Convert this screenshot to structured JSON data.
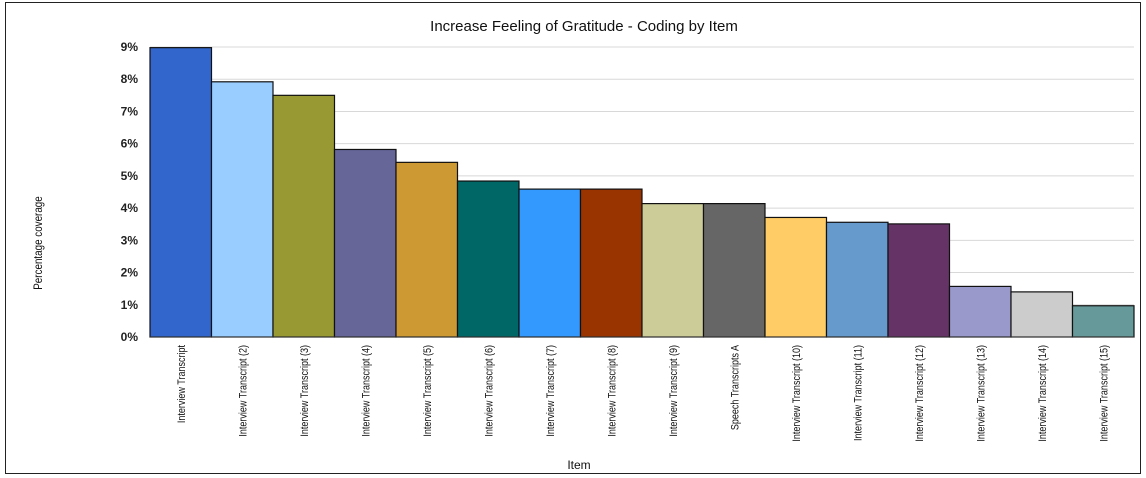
{
  "chart_data": {
    "type": "bar",
    "title": "Increase Feeling of Gratitude - Coding by Item",
    "xlabel": "Item",
    "ylabel": "Percentage coverage",
    "ylim": [
      0,
      9
    ],
    "yticks": [
      "0%",
      "1%",
      "2%",
      "3%",
      "4%",
      "5%",
      "6%",
      "7%",
      "8%",
      "9%"
    ],
    "grid": true,
    "categories": [
      "Interview Transcript",
      "Interview Transcript (2)",
      "Interview Transcript (3)",
      "Interview Transcript (4)",
      "Interview Transcript (5)",
      "Interview Transcript (6)",
      "Interview Transcript (7)",
      "Interview Transcript (8)",
      "Interview Transcript (9)",
      "Speech Transcripts A",
      "Interview Transcript (10)",
      "Interview Transcript (11)",
      "Interview Transcript (12)",
      "Interview Transcript (13)",
      "Interview Transcript (14)",
      "Interview Transcript (15)"
    ],
    "values": [
      8.98,
      7.92,
      7.5,
      5.82,
      5.42,
      4.84,
      4.59,
      4.59,
      4.14,
      4.14,
      3.71,
      3.56,
      3.51,
      1.57,
      1.4,
      0.97
    ],
    "colors": [
      "#3366CC",
      "#99CCFF",
      "#999933",
      "#666699",
      "#CC9933",
      "#006666",
      "#3399FF",
      "#993300",
      "#CCCC99",
      "#666666",
      "#FFCC66",
      "#6699CC",
      "#663366",
      "#9999CC",
      "#CCCCCC",
      "#669999"
    ]
  }
}
